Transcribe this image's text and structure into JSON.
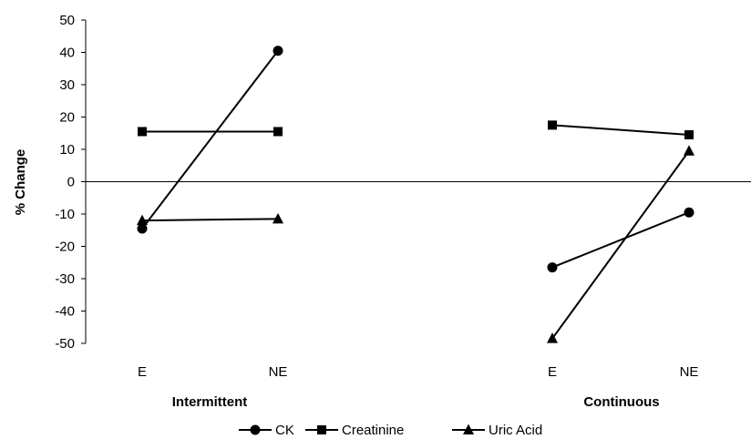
{
  "chart_data": {
    "type": "line",
    "ylabel": "% Change",
    "ylim": [
      -50,
      50
    ],
    "yticks": [
      50,
      40,
      30,
      20,
      10,
      0,
      -10,
      -20,
      -30,
      -40,
      -50
    ],
    "grid": false,
    "legend_position": "bottom",
    "groups": [
      {
        "name": "Intermittent",
        "categories": [
          "E",
          "NE"
        ]
      },
      {
        "name": "Continuous",
        "categories": [
          "E",
          "NE"
        ]
      }
    ],
    "series": [
      {
        "name": "CK",
        "marker": "circle",
        "intermittent": [
          -14.5,
          40.5
        ],
        "continuous": [
          -26.5,
          -9.5
        ]
      },
      {
        "name": "Creatinine",
        "marker": "square",
        "intermittent": [
          15.5,
          15.5
        ],
        "continuous": [
          17.5,
          14.5
        ]
      },
      {
        "name": "Uric Acid",
        "marker": "triangle",
        "intermittent": [
          -12,
          -11.5
        ],
        "continuous": [
          -48.5,
          9.5
        ]
      }
    ],
    "line_color": "#000000"
  }
}
